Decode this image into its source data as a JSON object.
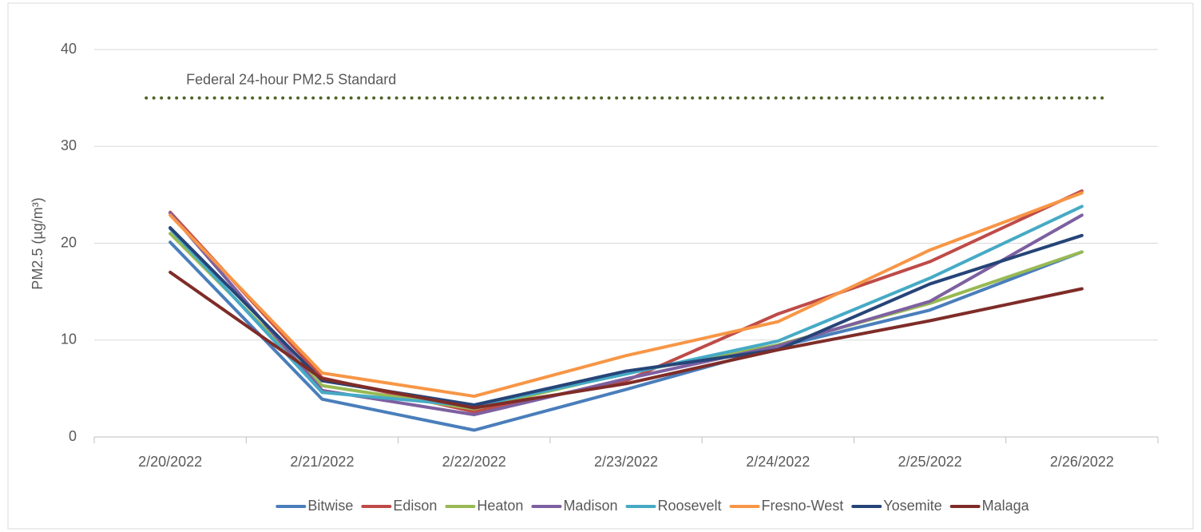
{
  "chart_data": {
    "type": "line",
    "y_label": "PM2.5 (µg/m³)",
    "categories": [
      "2/20/2022",
      "2/21/2022",
      "2/22/2022",
      "2/23/2022",
      "2/24/2022",
      "2/25/2022",
      "2/26/2022"
    ],
    "series": [
      {
        "name": "Bitwise",
        "color": "#4a7ebb",
        "values": [
          20.1,
          3.9,
          0.7,
          4.9,
          9.3,
          13.1,
          19.1
        ]
      },
      {
        "name": "Edison",
        "color": "#be4b48",
        "values": [
          23.2,
          6.1,
          2.6,
          5.8,
          12.7,
          18.1,
          25.4
        ]
      },
      {
        "name": "Heaton",
        "color": "#98b954",
        "values": [
          21.0,
          5.3,
          2.9,
          6.6,
          9.5,
          13.8,
          19.1
        ]
      },
      {
        "name": "Madison",
        "color": "#7d60a0",
        "values": [
          23.1,
          4.8,
          2.3,
          6.0,
          9.4,
          14.0,
          22.9
        ]
      },
      {
        "name": "Roosevelt",
        "color": "#46aac5",
        "values": [
          21.5,
          4.6,
          3.2,
          6.5,
          9.9,
          16.4,
          23.8
        ]
      },
      {
        "name": "Fresno-West",
        "color": "#f79646",
        "values": [
          22.9,
          6.6,
          4.2,
          8.4,
          11.9,
          19.3,
          25.2
        ]
      },
      {
        "name": "Yosemite",
        "color": "#264478",
        "values": [
          21.6,
          5.8,
          3.3,
          6.8,
          9.0,
          15.8,
          20.8
        ]
      },
      {
        "name": "Malaga",
        "color": "#7f2c28",
        "values": [
          17.0,
          6.0,
          3.0,
          5.5,
          9.0,
          12.0,
          15.3
        ]
      }
    ],
    "reference_line": {
      "value": 35,
      "label": "Federal 24-hour PM2.5 Standard",
      "color": "#4f6228"
    },
    "ylim": [
      0,
      40
    ],
    "yticks": [
      0,
      10,
      20,
      30,
      40
    ],
    "grid": true,
    "legend": "bottom"
  }
}
